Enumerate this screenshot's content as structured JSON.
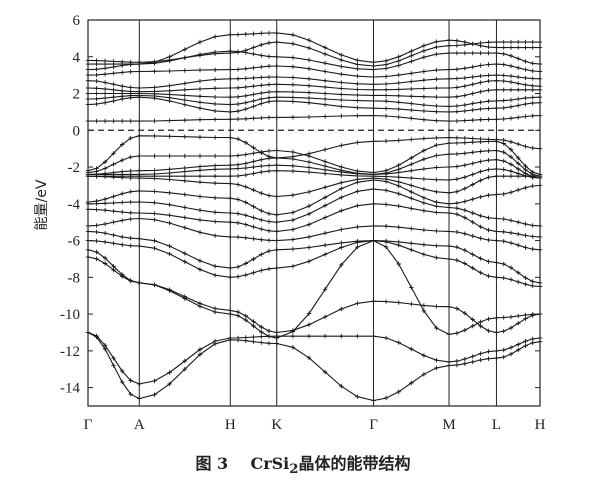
{
  "caption": {
    "figure_label": "图 3",
    "formula": "CrSi",
    "formula_subscript": "2",
    "description": "晶体的能带结构"
  },
  "chart_data": {
    "type": "line",
    "ylabel": "能量/eV",
    "ylim": [
      -15,
      6
    ],
    "yticks": [
      6,
      4,
      2,
      0,
      -2,
      -4,
      -6,
      -8,
      -10,
      -12,
      -14
    ],
    "k_path_labels": [
      "Γ",
      "A",
      "H",
      "K",
      "Γ",
      "M",
      "L",
      "H"
    ],
    "k_positions": [
      0,
      0.53,
      1.47,
      1.95,
      2.95,
      3.73,
      4.22,
      4.67
    ],
    "fermi_level": 0,
    "grid": false,
    "marker": "plus",
    "series": [
      {
        "values": [
          -11.0,
          -13.8,
          -11.3,
          -11.2,
          -11.2,
          -12.6,
          -12.0,
          -11.3
        ]
      },
      {
        "values": [
          -11.0,
          -14.6,
          -11.4,
          -11.6,
          -14.7,
          -12.8,
          -12.4,
          -11.5
        ]
      },
      {
        "values": [
          -6.9,
          -8.3,
          -10.0,
          -11.3,
          -6.0,
          -11.1,
          -10.2,
          -10.0
        ]
      },
      {
        "values": [
          -6.5,
          -8.3,
          -9.8,
          -11.0,
          -9.3,
          -9.6,
          -11.0,
          -10.0
        ]
      },
      {
        "values": [
          -6.0,
          -6.3,
          -8.0,
          -7.5,
          -6.0,
          -7.0,
          -8.0,
          -8.5
        ]
      },
      {
        "values": [
          -5.5,
          -5.9,
          -7.5,
          -6.5,
          -6.0,
          -6.3,
          -7.2,
          -8.3
        ]
      },
      {
        "values": [
          -5.2,
          -4.8,
          -5.8,
          -6.0,
          -5.2,
          -5.5,
          -6.0,
          -6.5
        ]
      },
      {
        "values": [
          -4.3,
          -4.5,
          -5.0,
          -5.5,
          -4.0,
          -4.5,
          -5.5,
          -5.8
        ]
      },
      {
        "values": [
          -4.0,
          -3.9,
          -4.5,
          -5.0,
          -3.2,
          -4.2,
          -4.8,
          -5.2
        ]
      },
      {
        "values": [
          -3.9,
          -3.3,
          -3.7,
          -4.6,
          -2.7,
          -4.0,
          -3.5,
          -3.0
        ]
      },
      {
        "values": [
          -2.5,
          -2.6,
          -2.9,
          -3.6,
          -2.6,
          -3.4,
          -2.5,
          -2.5
        ]
      },
      {
        "values": [
          -2.5,
          -2.5,
          -2.5,
          -2.2,
          -2.5,
          -2.7,
          -2.1,
          -2.6
        ]
      },
      {
        "values": [
          -2.4,
          -2.4,
          -2.1,
          -1.9,
          -2.4,
          -2.0,
          -1.6,
          -2.6
        ]
      },
      {
        "values": [
          -2.4,
          -2.2,
          -1.9,
          -1.5,
          -2.4,
          -1.3,
          -1.1,
          -2.5
        ]
      },
      {
        "values": [
          -2.3,
          -1.4,
          -1.4,
          -1.1,
          -2.3,
          -0.7,
          -0.6,
          -2.4
        ]
      },
      {
        "values": [
          -2.2,
          -0.3,
          -0.4,
          -1.5,
          -0.6,
          -0.4,
          -0.5,
          -1.0
        ]
      },
      {
        "values": [
          0.5,
          0.5,
          0.6,
          0.7,
          0.8,
          0.5,
          0.6,
          0.8
        ]
      },
      {
        "values": [
          1.4,
          1.8,
          1.0,
          1.6,
          1.2,
          1.0,
          1.2,
          1.5
        ]
      },
      {
        "values": [
          1.7,
          1.9,
          1.4,
          1.8,
          1.6,
          1.3,
          1.6,
          1.8
        ]
      },
      {
        "values": [
          2.0,
          2.0,
          1.8,
          2.1,
          1.9,
          1.8,
          2.2,
          2.2
        ]
      },
      {
        "values": [
          2.3,
          2.1,
          2.3,
          2.5,
          2.2,
          2.3,
          2.7,
          2.4
        ]
      },
      {
        "values": [
          2.7,
          2.3,
          2.8,
          2.9,
          2.5,
          2.8,
          3.0,
          2.8
        ]
      },
      {
        "values": [
          3.0,
          3.2,
          3.3,
          3.5,
          2.9,
          3.3,
          3.6,
          3.2
        ]
      },
      {
        "values": [
          3.3,
          3.6,
          4.3,
          4.0,
          3.3,
          4.2,
          4.2,
          3.6
        ]
      },
      {
        "values": [
          3.6,
          3.6,
          5.2,
          5.3,
          3.7,
          4.9,
          4.5,
          4.5
        ]
      },
      {
        "values": [
          3.8,
          3.7,
          4.2,
          4.8,
          3.5,
          4.6,
          4.8,
          4.8
        ]
      }
    ]
  }
}
